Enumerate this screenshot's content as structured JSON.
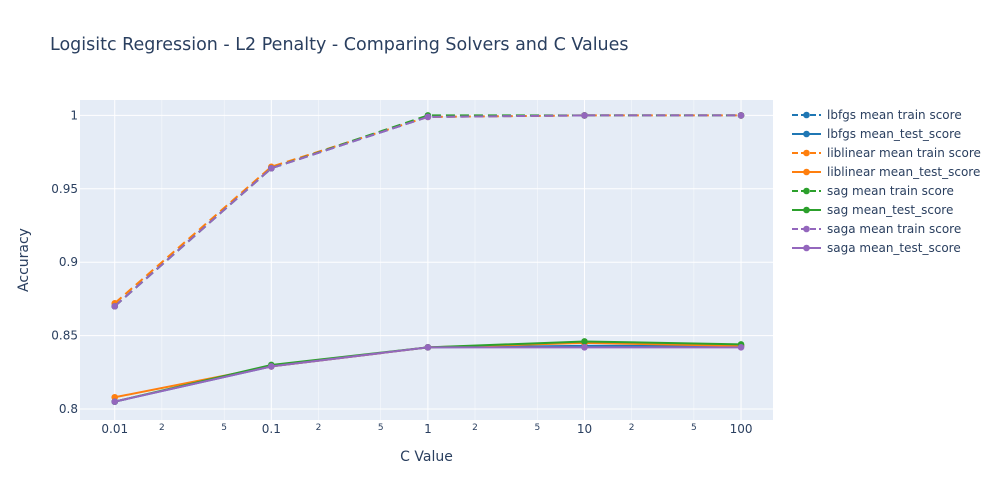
{
  "chart_data": {
    "type": "line",
    "title": "Logisitc Regression - L2 Penalty - Comparing Solvers and C Values",
    "xlabel": "C Value",
    "ylabel": "Accuracy",
    "x_scale": "log",
    "x": [
      0.01,
      0.1,
      1,
      10,
      100
    ],
    "x_ticks": [
      "0.01",
      "0.1",
      "1",
      "10",
      "100"
    ],
    "x_minor_ticks": [
      "2",
      "5"
    ],
    "y_ticks": [
      "0.8",
      "0.85",
      "0.9",
      "0.95",
      "1"
    ],
    "ylim": [
      0.7925,
      1.0105
    ],
    "grid": true,
    "legend_position": "right",
    "background_color": "#e5ecf6",
    "series": [
      {
        "name": "lbfgs mean train score",
        "color": "#1f77b4",
        "dash": true,
        "values": [
          0.87,
          0.964,
          0.999,
          1.0,
          1.0
        ]
      },
      {
        "name": "lbfgs mean_test_score",
        "color": "#1f77b4",
        "dash": false,
        "values": [
          0.805,
          0.829,
          0.842,
          0.843,
          0.843
        ]
      },
      {
        "name": "liblinear mean train score",
        "color": "#ff7f0e",
        "dash": true,
        "values": [
          0.872,
          0.965,
          0.999,
          1.0,
          1.0
        ]
      },
      {
        "name": "liblinear mean_test_score",
        "color": "#ff7f0e",
        "dash": false,
        "values": [
          0.808,
          0.829,
          0.842,
          0.845,
          0.843
        ]
      },
      {
        "name": "sag mean train score",
        "color": "#2ca02c",
        "dash": true,
        "values": [
          0.87,
          0.964,
          1.0,
          1.0,
          1.0
        ]
      },
      {
        "name": "sag mean_test_score",
        "color": "#2ca02c",
        "dash": false,
        "values": [
          0.805,
          0.83,
          0.842,
          0.846,
          0.844
        ]
      },
      {
        "name": "saga mean train score",
        "color": "#9467bd",
        "dash": true,
        "values": [
          0.87,
          0.964,
          0.999,
          1.0,
          1.0
        ]
      },
      {
        "name": "saga mean_test_score",
        "color": "#9467bd",
        "dash": false,
        "values": [
          0.805,
          0.829,
          0.842,
          0.842,
          0.842
        ]
      }
    ]
  }
}
